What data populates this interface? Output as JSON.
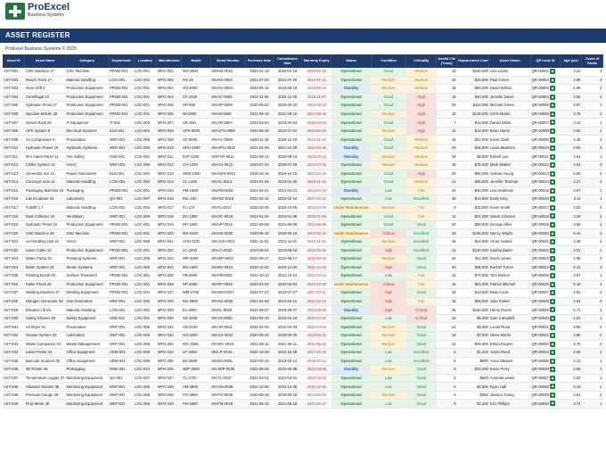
{
  "brand": {
    "name": "ProExcel",
    "sub": "Business Systems"
  },
  "title": "ASSET REGISTER",
  "copyright": "ProExcel Business Systems © 2025",
  "columns": [
    "Asset ID",
    "Asset Name",
    "Category",
    "Department",
    "Location",
    "Manufacturer",
    "Model",
    "Serial Number",
    "Purchase Date",
    "Commission Date",
    "Warranty Expiry",
    "Status",
    "Condition",
    "Criticality",
    "Useful Life (Years)",
    "Replacement Cost",
    "Asset Owner",
    "QR Code ID",
    "Age (yrs)",
    "Count of Faults"
  ],
  "rows": [
    [
      "AST-001",
      "CNC Machine 17",
      "CNC Machine",
      "PROD-001",
      "LOC-001",
      "MFG-001",
      "MX-2000",
      "SN-MX-0001",
      "2022-01-19",
      "2022-01-18",
      "2025-01-19",
      "Operational",
      "Good",
      "Medium",
      "10",
      "$150,000",
      "Lisa Lopez",
      "QR-00001",
      "3.22",
      "3"
    ],
    [
      "AST-002",
      "Reach Truck 17",
      "Material Handling",
      "LOG-001",
      "LOC-002",
      "MFG-002",
      "RX-16",
      "SN-RX-0002",
      "2021-07-20",
      "2021-07-20",
      "2024-07-21",
      "Operational",
      "Medium",
      "Medium",
      "10",
      "$28,000",
      "Paul Green",
      "QR-00002",
      "3.85",
      "3"
    ],
    [
      "AST-003",
      "Oven 20ft 3",
      "Production Equipment",
      "PROD-001",
      "LOC-001",
      "MFG-003",
      "OV-3000",
      "SN-OV-0003",
      "2023-05-10",
      "2023-05-10",
      "2026-05-10",
      "Standby",
      "Medium",
      "Medium",
      "15",
      "$60,000",
      "David Wilson",
      "QR-00003",
      "1.95",
      "2"
    ],
    [
      "AST-004",
      "Centrifugal 22",
      "Production Equipment",
      "PROD-001",
      "LOC-001",
      "MFG-004",
      "CF-2200",
      "SN-CF-0004",
      "2022-11-06",
      "2022-11-06",
      "2025-11-07",
      "Operational",
      "Good",
      "High",
      "15",
      "$40,000",
      "Jennifer Davis",
      "QR-00004",
      "2.65",
      "2"
    ],
    [
      "AST-005",
      "Hydraulic Press 17",
      "Production Equipment",
      "PROD-001",
      "LOC-001",
      "MFG-005",
      "HP-650",
      "SN-HP-0005",
      "2020-05-22",
      "2020-05-22",
      "2023-05-23",
      "Operational",
      "Good",
      "High",
      "20",
      "$110,000",
      "Michael Green",
      "QR-00005",
      "4.97",
      "1"
    ],
    [
      "AST-006",
      "Injection Molder 28",
      "Production Equipment",
      "PROD-001",
      "LOC-001",
      "MFG-006",
      "IM-2800",
      "SN-IM-0006",
      "2021-08-16",
      "2021-08-15",
      "2024-08-16",
      "Operational",
      "Medium",
      "High",
      "15",
      "$135,000",
      "Chris Martin",
      "QR-00006",
      "3.78",
      "3"
    ],
    [
      "AST-007",
      "Server Rack 26",
      "IT Equipment",
      "IT-001",
      "LOC-003",
      "MFG-007",
      "SR-26U",
      "SN-SR-0007",
      "2023-03-04",
      "2023-03-04",
      "2026-03-04",
      "Operational",
      "Good",
      "High",
      "7",
      "$18,000",
      "Daniel White",
      "QR-00007",
      "2.13",
      "1"
    ],
    [
      "AST-008",
      "UPS System 8",
      "Electrical Systems",
      "ELE-001",
      "LOC-004",
      "MFG-008",
      "UPS-8000",
      "SN-UPS-0008",
      "2022-06-30",
      "2022-07-01",
      "2025-06-30",
      "Operational",
      "Medium",
      "High",
      "12",
      "$12,000",
      "Brian Harris",
      "QR-00008",
      "2.82",
      "1"
    ],
    [
      "AST-009",
      "Air Compressor 9",
      "Pneumatics",
      "MNT-001",
      "LOC-005",
      "MFG-009",
      "AC-9000",
      "SN-AC-0009",
      "2020-11-18",
      "2020-11-18",
      "2023-11-18",
      "Operational",
      "Good",
      "Medium",
      "15",
      "$22,000",
      "Kevin Clark",
      "QR-00009",
      "4.48",
      "3"
    ],
    [
      "AST-010",
      "Hydraulic Power 19",
      "Hydraulic Systems",
      "MNT-001",
      "LOC-005",
      "MFG-010",
      "HPU-1900",
      "SN-HPU-0010",
      "2021-04-29",
      "2021-04-29",
      "2024-04-29",
      "Standby",
      "Good",
      "Medium",
      "10",
      "$26,000",
      "Laura Martinez",
      "QR-00010",
      "3.82",
      "3"
    ],
    [
      "AST-011",
      "Fire Alarm Panel 11",
      "Fire Safety",
      "HSE-001",
      "LOC-001",
      "MFG-011",
      "FAP-1100",
      "SN-FAP-0011",
      "2022-09-14",
      "2022-09-14",
      "2025-09-13",
      "Standby",
      "Medium",
      "Medium",
      "10",
      "$8,500",
      "Robert Lee",
      "QR-00011",
      "2.61",
      "1"
    ],
    [
      "AST-012",
      "Chiller System 12",
      "HVAC",
      "MNT-001",
      "LOC-006",
      "MFG-012",
      "CH-1200",
      "SN-CH-0012",
      "2020-07-24",
      "2020-07-25",
      "2023-07-26",
      "Operational",
      "Medium",
      "Medium",
      "18",
      "$75,000",
      "Mark Walker",
      "QR-00012",
      "4.81",
      "3"
    ],
    [
      "AST-013",
      "Generator Set 14",
      "Power Generation",
      "ELE-001",
      "LOC-004",
      "MFG-013",
      "GEN-1300",
      "SN-GEN-0013",
      "2019-10-15",
      "2019-10-15",
      "2022-10-16",
      "Operational",
      "Good",
      "High",
      "20",
      "$90,000",
      "Joshua Young",
      "QR-00013",
      "5.60",
      "4"
    ],
    [
      "AST-014",
      "Conveyor Line 14",
      "Material Handling",
      "LOG-001",
      "LOC-002",
      "MFG-014",
      "CL-1400",
      "SN-CL-0014",
      "2023-01-25",
      "2023-01-25",
      "2026-01-26",
      "Operational",
      "Good",
      "Medium",
      "12",
      "$55,000",
      "Jennifer Thomas",
      "QR-00014",
      "2.27",
      "2"
    ],
    [
      "AST-015",
      "Packaging Machine 15",
      "Packaging",
      "PROD-001",
      "LOC-001",
      "MFG-015",
      "PM-1500",
      "SN-PM-0015",
      "2021-04-21",
      "2021-04-21",
      "2024-04-23",
      "Standby",
      "Low",
      "Fair",
      "10",
      "$48,000",
      "Lisa Anderson",
      "QR-00015",
      "3.87",
      "1"
    ],
    [
      "AST-016",
      "Lab Incubator 16",
      "Laboratory",
      "QA-001",
      "LOC-007",
      "MFG-016",
      "INC-160",
      "SN-INC-0016",
      "2022-02-12",
      "2022-02-12",
      "2027-02-12",
      "Operational",
      "Low",
      "Excellent",
      "10",
      "$14,500",
      "Emily King",
      "QR-00016",
      "3.11",
      "1"
    ],
    [
      "AST-017",
      "Forklift 1.7",
      "Material Handling",
      "LOG-001",
      "LOC-002",
      "MFG-017",
      "FL-174",
      "SN-FL-0017",
      "2020-10-05",
      "2020-10-05",
      "2023-10-05",
      "Under Maintenance",
      "Medium",
      "Fair",
      "8",
      "$32,000",
      "Kevin Smith",
      "QR-00017",
      "4.53",
      "4"
    ],
    [
      "AST-018",
      "Dust Collector 18",
      "Ventilation",
      "MNT-001",
      "LOC-006",
      "MFG-018",
      "DC-1800",
      "SN-DC-0018",
      "2022-01-06",
      "2022-01-06",
      "2025-01-08",
      "Operational",
      "Good",
      "Fair",
      "12",
      "$21,000",
      "Sarah Johnson",
      "QR-00018",
      "3.30",
      "2"
    ],
    [
      "AST-019",
      "Hydraulic Press 19",
      "Production Equipment",
      "PROD-001",
      "LOC-001",
      "MFG-019",
      "HP-1900",
      "SN-HP-0019",
      "2021-09-08",
      "2021-09-08",
      "2024-09-09",
      "Operational",
      "Good",
      "Good",
      "20",
      "$98,000",
      "George Allen",
      "QR-00019",
      "3.69",
      "2"
    ],
    [
      "AST-020",
      "CNC Machine 20",
      "CNC Machine",
      "PROD-001",
      "LOC-001",
      "MFG-020",
      "MX-2100",
      "SN-MX-0020",
      "2020-05-16",
      "2020-05-16",
      "2023-05-18",
      "Under Maintenance",
      "Critical",
      "Excellent",
      "10",
      "$165,000",
      "Nancy Wright",
      "QR-00020",
      "5.44",
      "2"
    ],
    [
      "AST-021",
      "Air Handling Unit 21",
      "HVAC",
      "MNT-001",
      "LOC-006",
      "MFG-021",
      "AHU-2100",
      "SN-AHU-0021",
      "2021-11-01",
      "2021-11-01",
      "2024-11-02",
      "Operational",
      "Medium",
      "Excellent",
      "15",
      "$42,000",
      "Victor Adams",
      "QR-00021",
      "3.38",
      "2"
    ],
    [
      "AST-022",
      "Laser Cutter 22",
      "Production Equipment",
      "PROD-001",
      "LOC-001",
      "MFG-022",
      "LC-2200",
      "SN-LC-0022",
      "2023-06-04",
      "2023-06-04",
      "2026-06-05",
      "Operational",
      "High",
      "Excellent",
      "12",
      "$120,000",
      "Sophia Baker",
      "QR-00022",
      "2.01",
      "1"
    ],
    [
      "AST-023",
      "Water Pump 23",
      "Pumping Systems",
      "MNT-001",
      "LOC-005",
      "MFG-023",
      "WP-2300",
      "SN-WP-0023",
      "2022-08-17",
      "2022-08-17",
      "2025-08-19",
      "Operational",
      "Medium",
      "Good",
      "10",
      "$11,000",
      "Gavin Jones",
      "QR-00023",
      "2.65",
      "3"
    ],
    [
      "AST-024",
      "Boiler System 24",
      "Steam Systems",
      "MNT-001",
      "LOC-005",
      "MFG-024",
      "BO-2400",
      "SN-BO-0024",
      "2019-12-02",
      "2019-12-02",
      "2022-12-02",
      "Operational",
      "High",
      "Good",
      "20",
      "$95,000",
      "Rachel Turner",
      "QR-00024",
      "5.41",
      "3"
    ],
    [
      "AST-025",
      "Painting Booth 25",
      "Surface Treatment",
      "PROD-001",
      "LOC-001",
      "MFG-025",
      "PB-2500",
      "SN-PB-0025",
      "2021-10-13",
      "2021-10-13",
      "2024-10-14",
      "Operational",
      "Low",
      "Fair",
      "15",
      "$70,000",
      "Tom Nelson",
      "QR-00025",
      "3.57",
      "1"
    ],
    [
      "AST-026",
      "Roller Press 26",
      "Production Equipment",
      "PROD-001",
      "LOC-001",
      "MFG-026",
      "RP-2600",
      "SN-RP-0026",
      "2020-03-04",
      "2020-03-04",
      "2023-03-06",
      "Under Maintenance",
      "Critical",
      "Fair",
      "15",
      "$84,000",
      "Patrick Mitchell",
      "QR-00026",
      "5.19",
      "4"
    ],
    [
      "AST-027",
      "Welding Machine 27",
      "Welding Equipment",
      "PROD-001",
      "LOC-001",
      "MFG-027",
      "WM-2700",
      "SN-WM-0027",
      "2022-07-27",
      "2022-07-27",
      "2027-07-27",
      "Operational",
      "High",
      "Good",
      "10",
      "$13,500",
      "Brian Cook",
      "QR-00027",
      "2.81",
      "2"
    ],
    [
      "AST-028",
      "Nitrogen Generator 28",
      "Gas Generation",
      "MNT-001",
      "LOC-005",
      "MFG-028",
      "NG-2800",
      "SN-NG-0028",
      "2021-02-22",
      "2021-02-22",
      "2024-02-23",
      "Operational",
      "High",
      "Fair",
      "15",
      "$56,000",
      "Julia Parker",
      "QR-00028",
      "4.04",
      "3"
    ],
    [
      "AST-029",
      "Elevator Lift 29",
      "Material Handling",
      "LOG-001",
      "LOC-002",
      "MFG-029",
      "EL-2900",
      "SN-EL-0029",
      "2019-09-07",
      "2019-09-07",
      "2022-09-08",
      "Standby",
      "High",
      "Critical",
      "25",
      "$150,000",
      "Henry Evans",
      "QR-00029",
      "5.71",
      "4"
    ],
    [
      "AST-030",
      "Safety Shower 30",
      "Safety Equipment",
      "HSE-001",
      "LOC-001",
      "MFG-030",
      "SS-3000",
      "SN-SS-0030",
      "2023-04-19",
      "2023-04-19",
      "2026-04-20",
      "Operational",
      "Low",
      "Critical",
      "10",
      "$5,000",
      "Sam Campbell",
      "QR-00030",
      "1.92",
      "1"
    ],
    [
      "AST-031",
      "Air Dryer 31",
      "Pneumatics",
      "MNT-001",
      "LOC-005",
      "MFG-031",
      "AD-3100",
      "SN-AD-0031",
      "2022-04-03",
      "2022-04-03",
      "2025-04-04",
      "Operational",
      "Medium",
      "Good",
      "12",
      "$9,500",
      "Lucas Reed",
      "QR-00031",
      "3.00",
      "2"
    ],
    [
      "AST-032",
      "Grease System 32",
      "Lubrication",
      "MNT-001",
      "LOC-005",
      "MFG-032",
      "GS-3200",
      "SN-GS-0032",
      "2020-06-25",
      "2020-06-25",
      "2023-06-25",
      "Operational",
      "Medium",
      "Good",
      "10",
      "$7,000",
      "Olivia Morris",
      "QR-00032",
      "4.86",
      "2"
    ],
    [
      "AST-033",
      "Waste Compactor 33",
      "Waste Management",
      "MNT-001",
      "LOC-008",
      "MFG-033",
      "WC-3300",
      "SN-WC-0033",
      "2021-05-11",
      "2021-05-11",
      "2024-05-12",
      "Operational",
      "Medium",
      "Good",
      "12",
      "$38,000",
      "Ethan Rogers",
      "QR-00033",
      "3.75",
      "2"
    ],
    [
      "AST-034",
      "Label Printer 34",
      "Office Equipment",
      "ADM-001",
      "LOC-009",
      "MFG-034",
      "LP-3400",
      "SN-LP-0034",
      "2022-10-28",
      "2022-10-28",
      "2027-10-28",
      "Operational",
      "Low",
      "Excellent",
      "6",
      "$1,200",
      "Justin Reed",
      "QR-00034",
      "2.50",
      "1"
    ],
    [
      "AST-035",
      "Barcode Scanner 35",
      "Office Equipment",
      "ADM-001",
      "LOC-009",
      "MFG-035",
      "BS-3500",
      "SN-BS-0035",
      "2023-02-14",
      "2023-02-14",
      "2028-02-14",
      "Operational",
      "Low",
      "Excellent",
      "5",
      "$800",
      "Anna Stewart",
      "QR-00035",
      "2.13",
      "1"
    ],
    [
      "AST-036",
      "3D Printer 36",
      "Prototyping",
      "RND-001",
      "LOC-010",
      "MFG-036",
      "3DP-3600",
      "SN-3DP-0036",
      "2022-08-08",
      "2022-08-08",
      "2025-08-08",
      "Standby",
      "Medium",
      "Good",
      "8",
      "$24,000",
      "Kevin Perry",
      "QR-00036",
      "2.68",
      "1"
    ],
    [
      "AST-037",
      "Temperature Logger 37",
      "Monitoring Equipment",
      "QA-001",
      "LOC-007",
      "MFG-037",
      "TL-3700",
      "SN-TL-0037",
      "2021-03-01",
      "2021-03-01",
      "2024-03-01",
      "Operational",
      "Low",
      "Good",
      "5",
      "$600",
      "Amanda Lewis",
      "QR-00037",
      "4.02",
      "1"
    ],
    [
      "AST-038",
      "Vibration Monitor 38",
      "Monitoring Equipment",
      "MNT-001",
      "LOC-005",
      "MFG-038",
      "VM-3800",
      "SN-VM-0038",
      "2022-12-05",
      "2022-12-05",
      "2025-12-05",
      "Operational",
      "Low",
      "Good",
      "6",
      "$3,500",
      "Ryan Hall",
      "QR-00038",
      "2.19",
      "1"
    ],
    [
      "AST-039",
      "Pressure Gauge 39",
      "Monitoring Equipment",
      "MNT-001",
      "LOC-005",
      "MFG-039",
      "PG-3900",
      "SN-PG-0039",
      "2020-09-19",
      "2020-09-19",
      "2023-09-20",
      "Operational",
      "Medium",
      "Good",
      "5",
      "$350",
      "Jessica Young",
      "QR-00039",
      "4.61",
      "2"
    ],
    [
      "AST-040",
      "Flow Meter 40",
      "Monitoring Equipment",
      "MNT-001",
      "LOC-005",
      "MFG-040",
      "FM-4000",
      "SN-FM-0040",
      "2021-06-16",
      "2021-06-16",
      "2024-06-17",
      "Operational",
      "Low",
      "Good",
      "8",
      "$2,200",
      "Eric Phillips",
      "QR-00040",
      "3.71",
      "1"
    ]
  ],
  "colors": {
    "brand": "#1f3c6e",
    "logo": "#1e7a3c",
    "expired": "#c0392b"
  }
}
